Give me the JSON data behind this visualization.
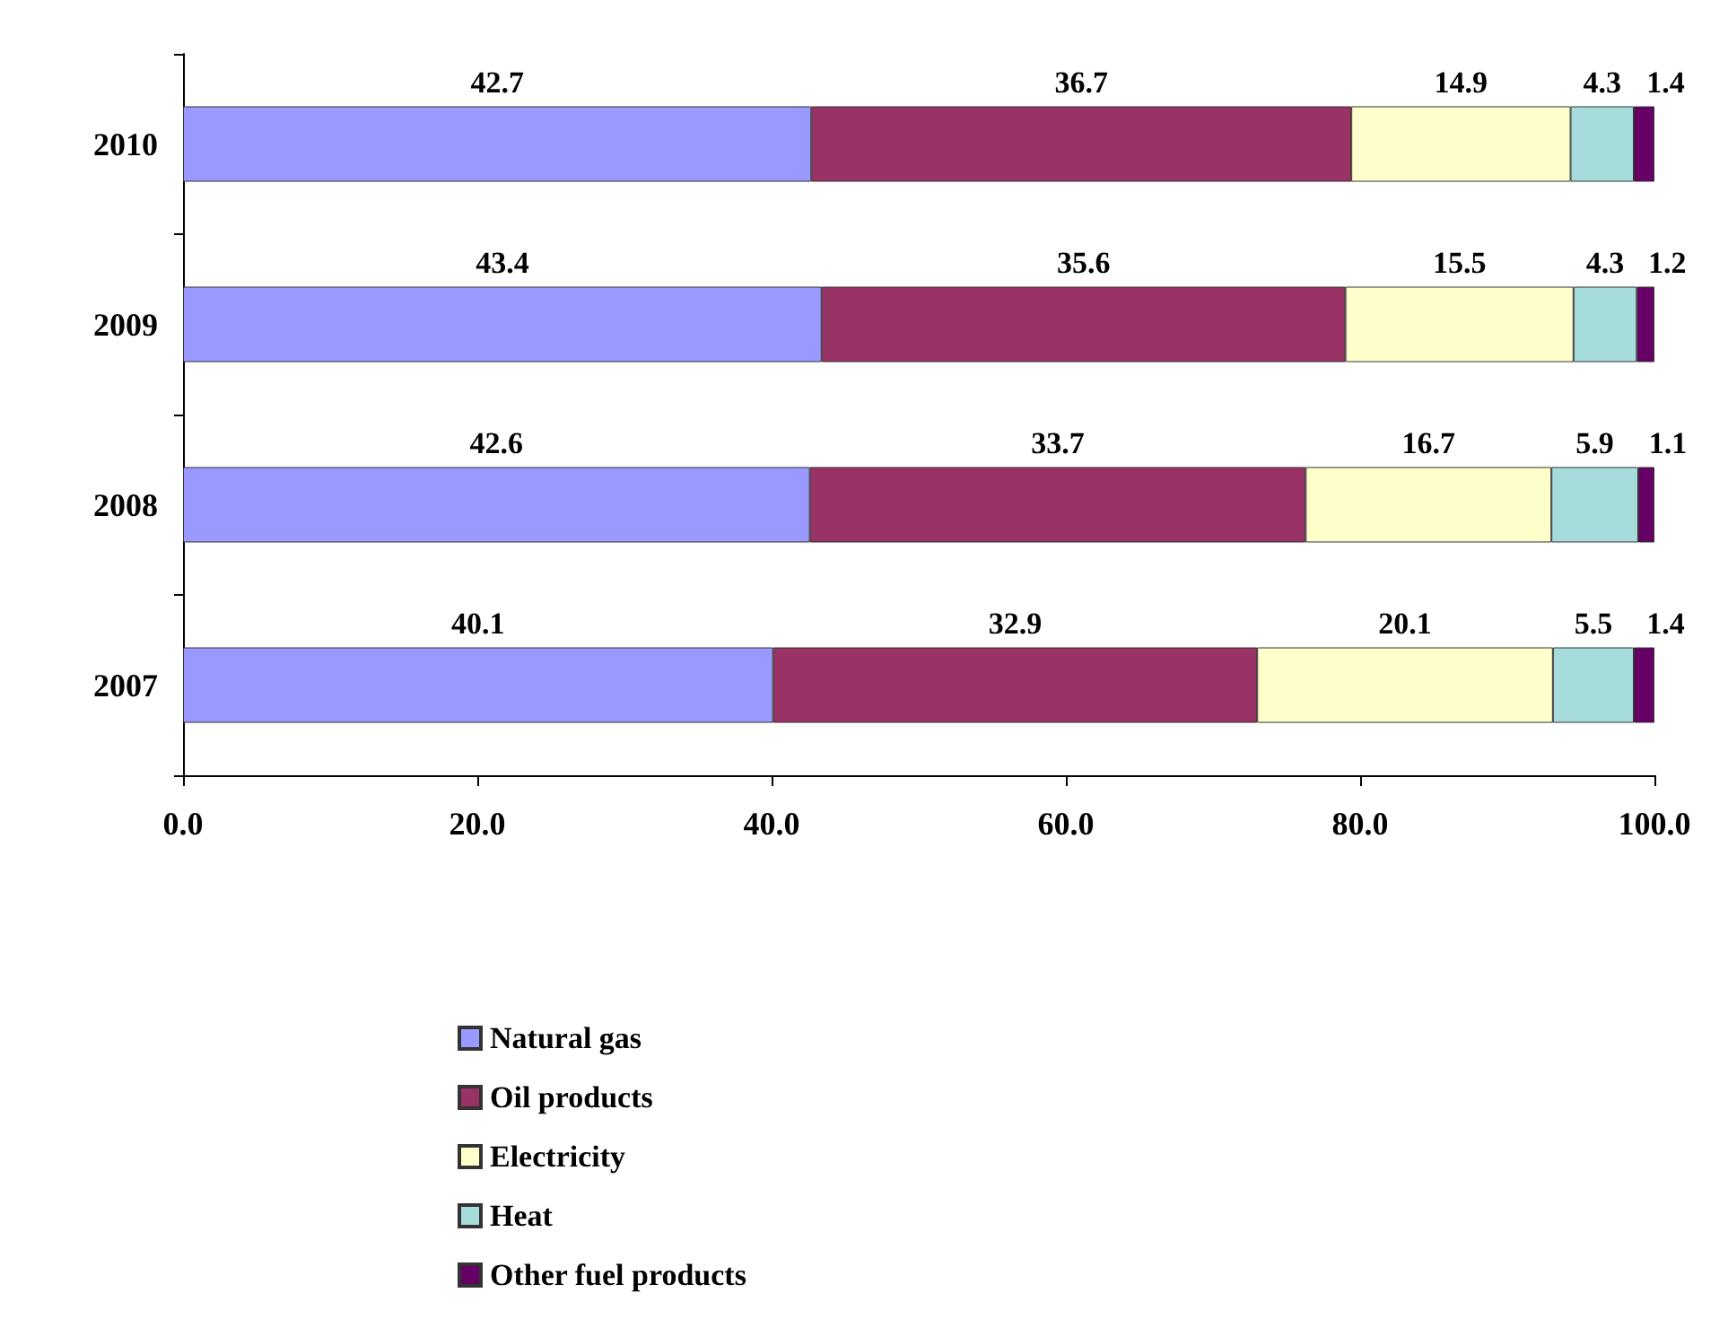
{
  "chart_data": {
    "type": "bar",
    "orientation": "horizontal",
    "stacked": true,
    "data_labels": true,
    "grid": false,
    "legend": "bottom",
    "categories": [
      "2010",
      "2009",
      "2008",
      "2007"
    ],
    "xlim": [
      0,
      100
    ],
    "xticks": [
      {
        "value": 0,
        "label": "0.0"
      },
      {
        "value": 20,
        "label": "20.0"
      },
      {
        "value": 40,
        "label": "40.0"
      },
      {
        "value": 60,
        "label": "60.0"
      },
      {
        "value": 80,
        "label": "80.0"
      },
      {
        "value": 100,
        "label": "100.0"
      }
    ],
    "series": [
      {
        "name": "Natural gas",
        "color": "#9999ff",
        "values": [
          42.7,
          43.4,
          42.6,
          40.1
        ]
      },
      {
        "name": "Oil products",
        "color": "#993366",
        "values": [
          36.7,
          35.6,
          33.7,
          32.9
        ]
      },
      {
        "name": "Electricity",
        "color": "#ffffcc",
        "values": [
          14.9,
          15.5,
          16.7,
          20.1
        ]
      },
      {
        "name": "Heat",
        "color": "#a6dcdc",
        "values": [
          4.3,
          4.3,
          5.9,
          5.5
        ]
      },
      {
        "name": "Other fuel products",
        "color": "#660066",
        "values": [
          1.4,
          1.2,
          1.1,
          1.4
        ]
      }
    ]
  }
}
